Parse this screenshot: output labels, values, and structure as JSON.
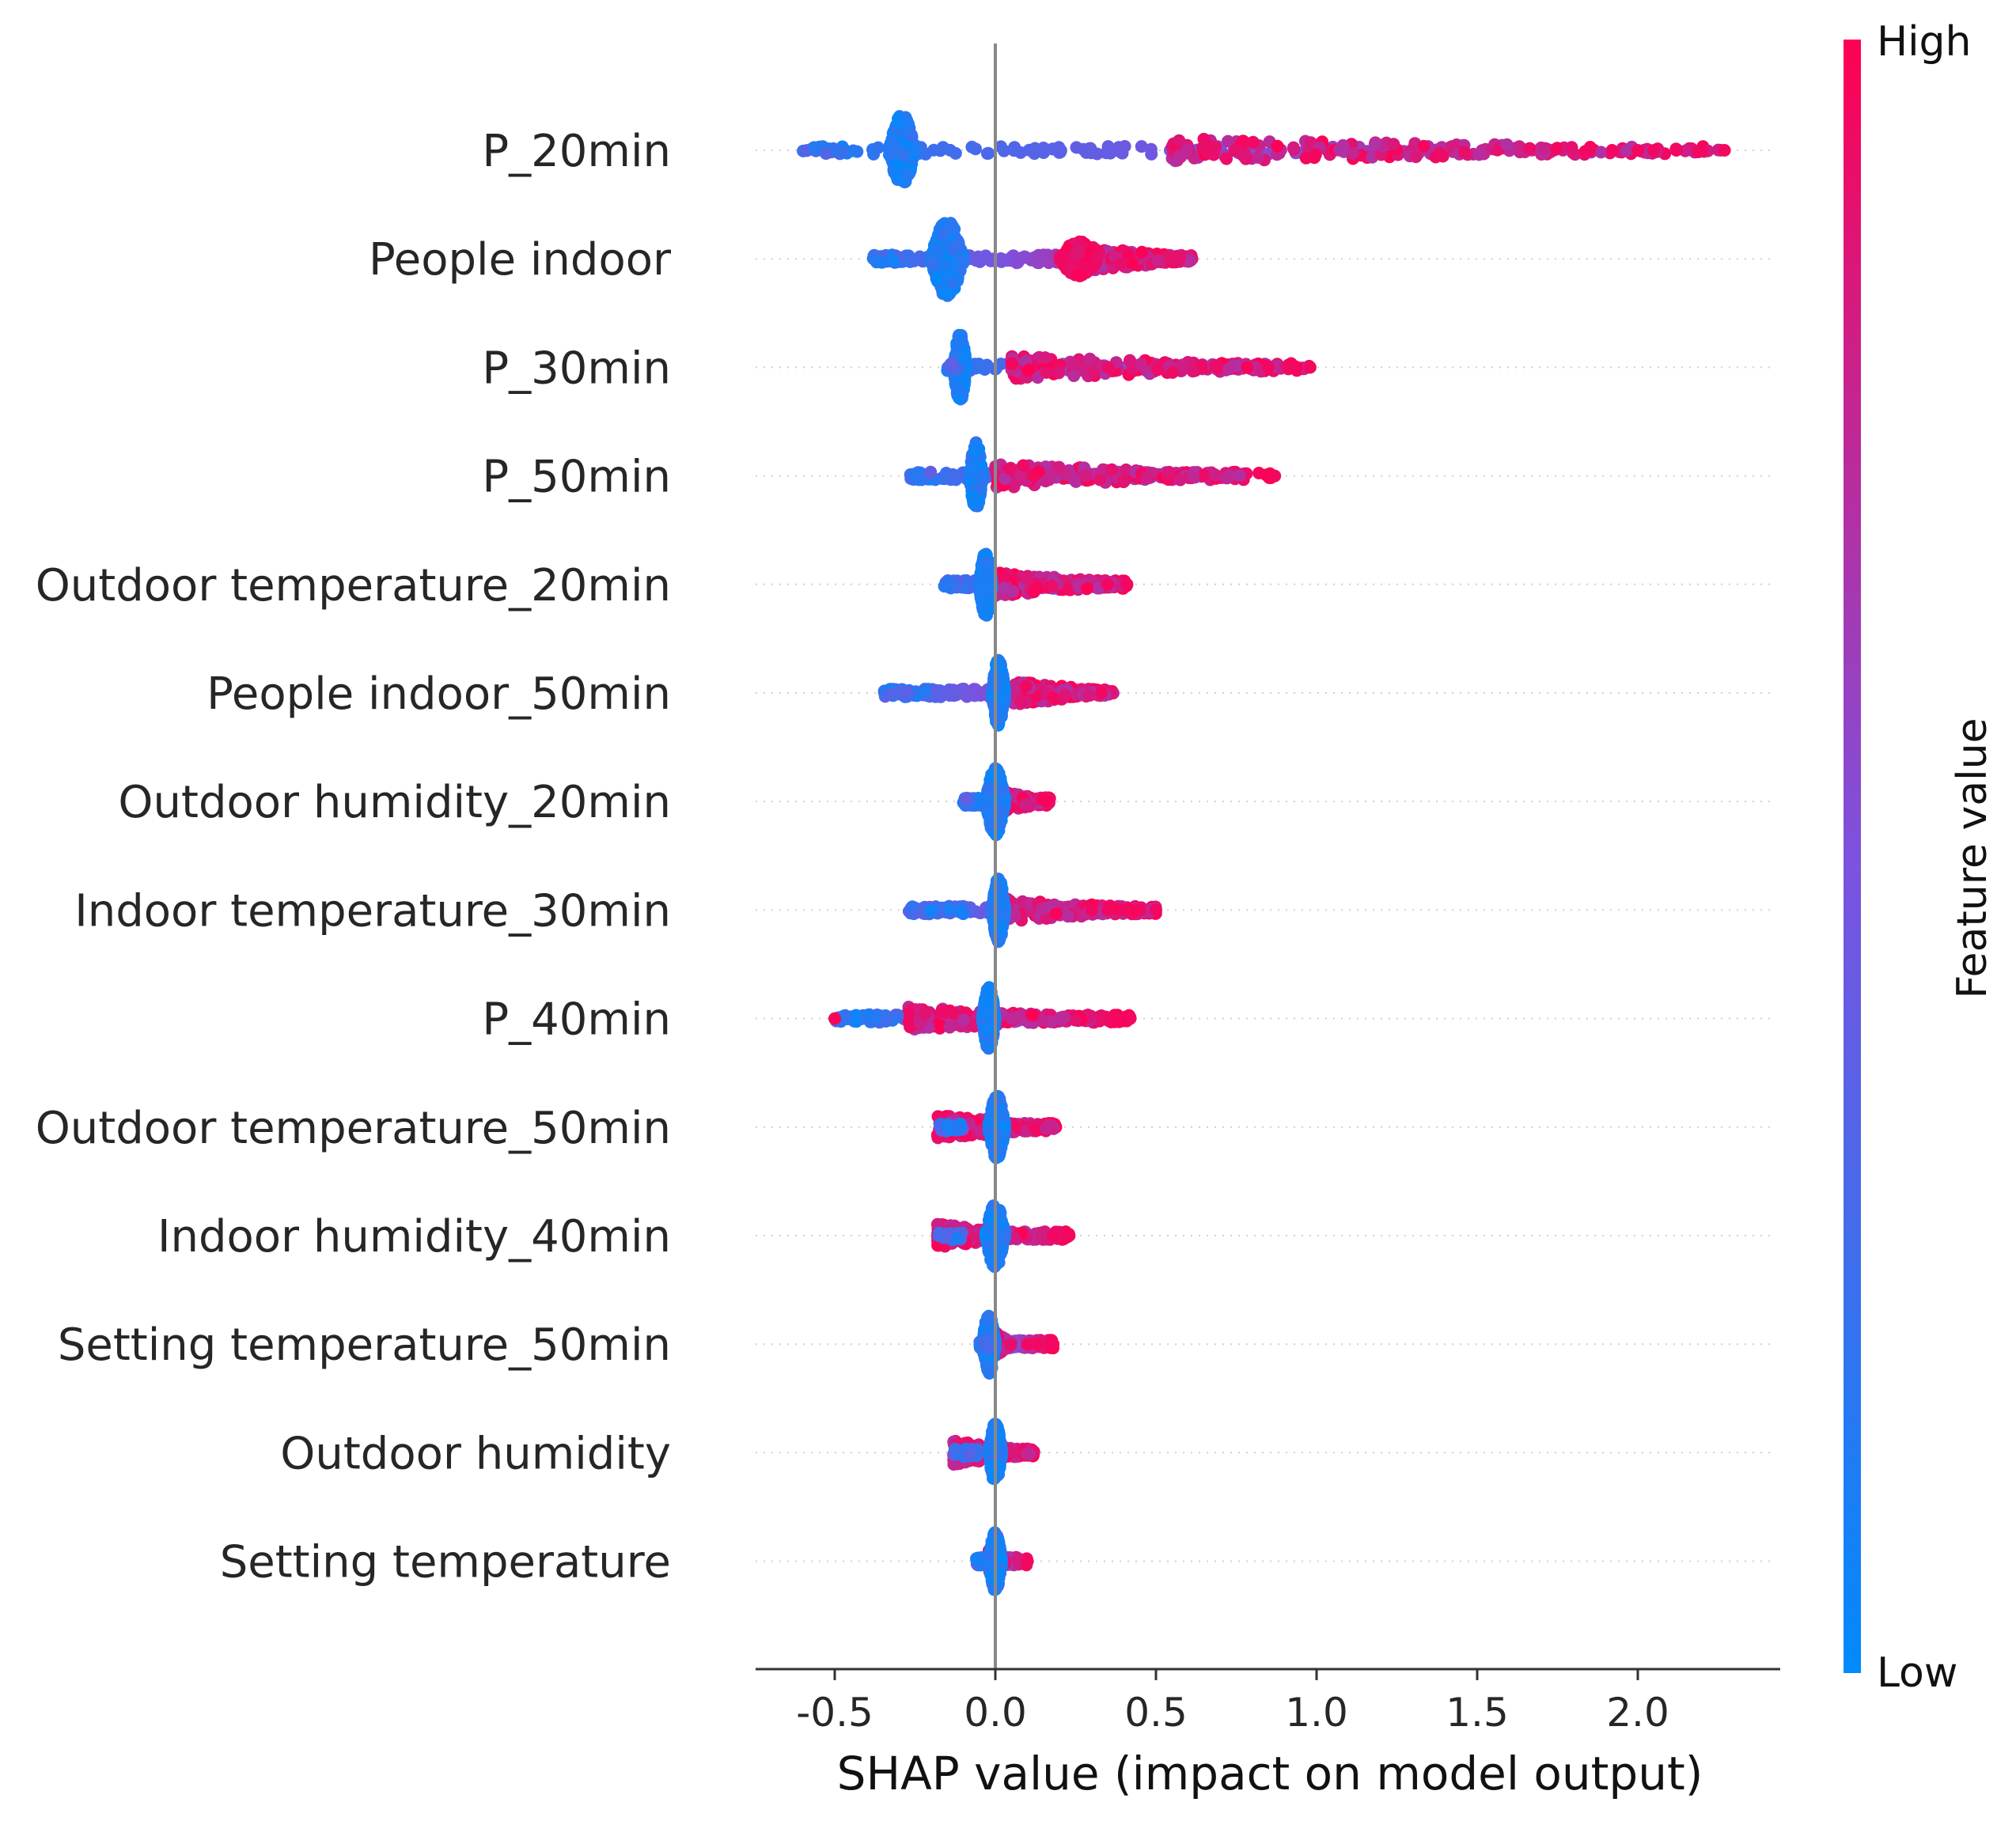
{
  "chart_data": {
    "type": "scatter",
    "subtype": "shap-beeswarm-summary",
    "xlabel": "SHAP value (impact on model output)",
    "xlim": [
      -0.75,
      2.43
    ],
    "xticks": [
      -0.5,
      0.0,
      0.5,
      1.0,
      1.5,
      2.0
    ],
    "xtick_labels": [
      "-0.5",
      "0.0",
      "0.5",
      "1.0",
      "1.5",
      "2.0"
    ],
    "zero_line": 0.0,
    "colorbar": {
      "title": "Feature value",
      "high_label": "High",
      "low_label": "Low",
      "low_color": "#008afb",
      "mid_color": "#7c52de",
      "high_color": "#ff0052"
    },
    "features": [
      {
        "name": "P_20min",
        "neg_low": [
          -0.6,
          -0.45
        ],
        "cluster_low": [
          -0.33,
          -0.25
        ],
        "spread": [
          -0.5,
          2.27
        ],
        "high_tail": [
          0.55,
          2.27
        ],
        "outliers": [
          1.85,
          1.92,
          2.0,
          2.05,
          2.12,
          2.2,
          2.27
        ],
        "max_density": 0.9
      },
      {
        "name": "People indoor",
        "neg_low": [
          -0.38,
          -0.3
        ],
        "cluster_low": [
          -0.2,
          -0.1
        ],
        "spread": [
          -0.38,
          0.62
        ],
        "high_cluster": [
          0.2,
          0.32
        ],
        "high_tail": [
          0.3,
          0.62
        ],
        "outliers": [],
        "max_density": 0.95
      },
      {
        "name": "P_30min",
        "neg_low": [
          -0.15,
          -0.12
        ],
        "cluster_low": [
          -0.13,
          -0.09
        ],
        "spread": [
          -0.15,
          0.98
        ],
        "high_tail": [
          0.05,
          0.98
        ],
        "outliers": [
          0.85,
          0.92,
          0.98
        ],
        "max_density": 0.85
      },
      {
        "name": "P_50min",
        "neg_low": [
          -0.27,
          -0.2
        ],
        "cluster_low": [
          -0.08,
          -0.04
        ],
        "spread": [
          -0.27,
          0.87
        ],
        "high_tail": [
          0.0,
          0.78
        ],
        "outliers": [
          0.87
        ],
        "max_density": 0.85
      },
      {
        "name": "Outdoor temperature_20min",
        "neg_low": [
          -0.16,
          -0.1
        ],
        "cluster_low": [
          -0.05,
          -0.01
        ],
        "spread": [
          -0.16,
          0.41
        ],
        "high_tail": [
          0.0,
          0.41
        ],
        "outliers": [
          0.35,
          0.41
        ],
        "max_density": 0.8
      },
      {
        "name": "People indoor_50min",
        "neg_low": [
          -0.35,
          -0.2
        ],
        "cluster_low": [
          -0.01,
          0.03
        ],
        "spread": [
          -0.35,
          0.37
        ],
        "high_tail": [
          0.05,
          0.37
        ],
        "outliers": [],
        "max_density": 0.85
      },
      {
        "name": "Outdoor humidity_20min",
        "neg_low": [
          -0.1,
          -0.05
        ],
        "cluster_low": [
          -0.03,
          0.03
        ],
        "spread": [
          -0.1,
          0.17
        ],
        "high_tail": [
          -0.02,
          0.17
        ],
        "outliers": [],
        "max_density": 0.85
      },
      {
        "name": "Indoor temperature_30min",
        "neg_low": [
          -0.27,
          -0.1
        ],
        "cluster_low": [
          -0.01,
          0.03
        ],
        "spread": [
          -0.27,
          0.5
        ],
        "high_tail": [
          0.0,
          0.5
        ],
        "outliers": [
          0.3,
          0.35,
          0.4,
          0.45,
          0.5
        ],
        "max_density": 0.8
      },
      {
        "name": "P_40min",
        "neg_low": [
          -0.5,
          -0.3
        ],
        "cluster_low": [
          -0.04,
          0.0
        ],
        "spread": [
          -0.5,
          0.42
        ],
        "high_tail": [
          -0.27,
          0.3
        ],
        "outliers": [
          -0.5,
          0.42
        ],
        "max_density": 0.8
      },
      {
        "name": "Outdoor temperature_50min",
        "neg_low": [
          -0.18,
          -0.1
        ],
        "cluster_low": [
          -0.02,
          0.03
        ],
        "spread": [
          -0.18,
          0.19
        ],
        "high_tail": [
          -0.18,
          0.19
        ],
        "outliers": [],
        "max_density": 0.8
      },
      {
        "name": "Indoor humidity_40min",
        "neg_low": [
          -0.18,
          -0.1
        ],
        "cluster_low": [
          -0.03,
          0.03
        ],
        "spread": [
          -0.18,
          0.23
        ],
        "high_tail": [
          -0.18,
          0.1
        ],
        "outliers": [
          0.18,
          0.23
        ],
        "max_density": 0.8
      },
      {
        "name": "Setting temperature_50min",
        "neg_low": [
          -0.05,
          -0.02
        ],
        "cluster_low": [
          -0.04,
          0.0
        ],
        "spread": [
          -0.05,
          0.18
        ],
        "high_tail": [
          0.0,
          0.05
        ],
        "outliers": [
          0.1,
          0.13,
          0.18
        ],
        "max_density": 0.75
      },
      {
        "name": "Outdoor humidity",
        "neg_low": [
          -0.13,
          -0.05
        ],
        "cluster_low": [
          -0.02,
          0.02
        ],
        "spread": [
          -0.13,
          0.12
        ],
        "high_tail": [
          -0.13,
          0.12
        ],
        "outliers": [],
        "max_density": 0.75
      },
      {
        "name": "Setting temperature",
        "neg_low": [
          -0.06,
          -0.02
        ],
        "cluster_low": [
          -0.02,
          0.02
        ],
        "spread": [
          -0.06,
          0.1
        ],
        "high_tail": [
          -0.02,
          0.03
        ],
        "outliers": [
          0.1
        ],
        "max_density": 0.75
      }
    ]
  }
}
